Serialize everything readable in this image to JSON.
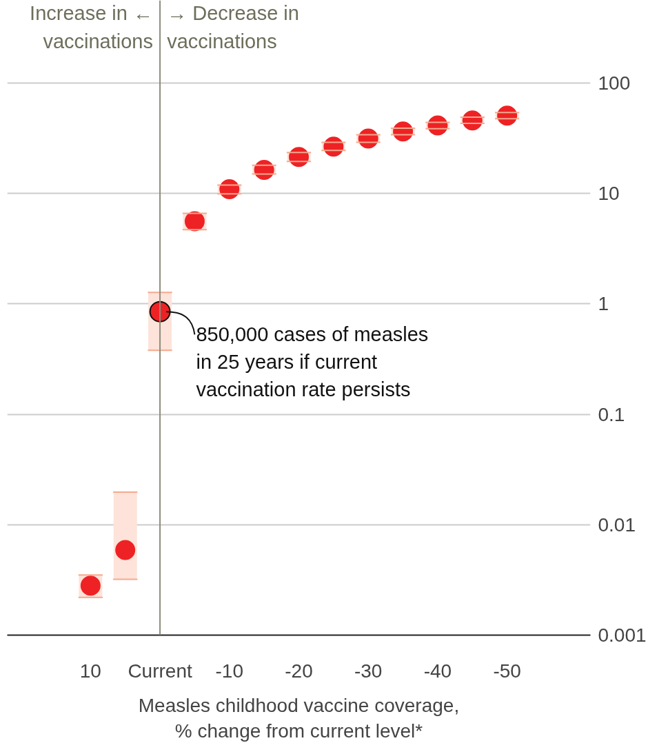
{
  "chart_data": {
    "type": "scatter",
    "x": [
      10,
      5,
      0,
      -5,
      -10,
      -15,
      -20,
      -25,
      -30,
      -35,
      -40,
      -45,
      -50
    ],
    "series": [
      {
        "color": "#ee2224",
        "values": [
          0.0028,
          0.0059,
          0.85,
          5.6,
          10.9,
          16.3,
          21.4,
          26.5,
          31.4,
          36.4,
          41.2,
          45.7,
          50.7
        ],
        "errors": [
          [
            0.0022,
            0.0035
          ],
          [
            0.0032,
            0.0197
          ],
          [
            0.38,
            1.27
          ],
          [
            4.7,
            6.6
          ],
          [
            9.9,
            11.9
          ],
          [
            15,
            18
          ],
          [
            19.5,
            23.5
          ],
          [
            24.5,
            29
          ],
          [
            29,
            34
          ],
          [
            34,
            39
          ],
          [
            38.5,
            44
          ],
          [
            43,
            49
          ],
          [
            47.5,
            54
          ]
        ]
      }
    ],
    "xlabel": "Measles childhood vaccine coverage,\n% change from current level*",
    "xlim": [
      22,
      -62
    ],
    "xticks": [
      10,
      {
        "value": 0,
        "label": "Current"
      },
      -10,
      -20,
      -30,
      -40,
      -50
    ],
    "ylim": [
      0.001,
      560
    ],
    "yticks": [
      0.001,
      0.01,
      0.1,
      1,
      10,
      100
    ],
    "log": true,
    "grid": "y",
    "marker": "circle",
    "ref_lines": [
      {
        "axis": "x",
        "value": 0,
        "color": "#8c8c7c"
      }
    ],
    "annotations": [
      "Increase in ←\nvaccinations",
      "→ Decrease in\nvaccinations",
      {
        "text": "850,000 cases of measles\nin 25 years if current\nvaccination rate persists",
        "x": 0,
        "y": 0.85
      }
    ]
  }
}
